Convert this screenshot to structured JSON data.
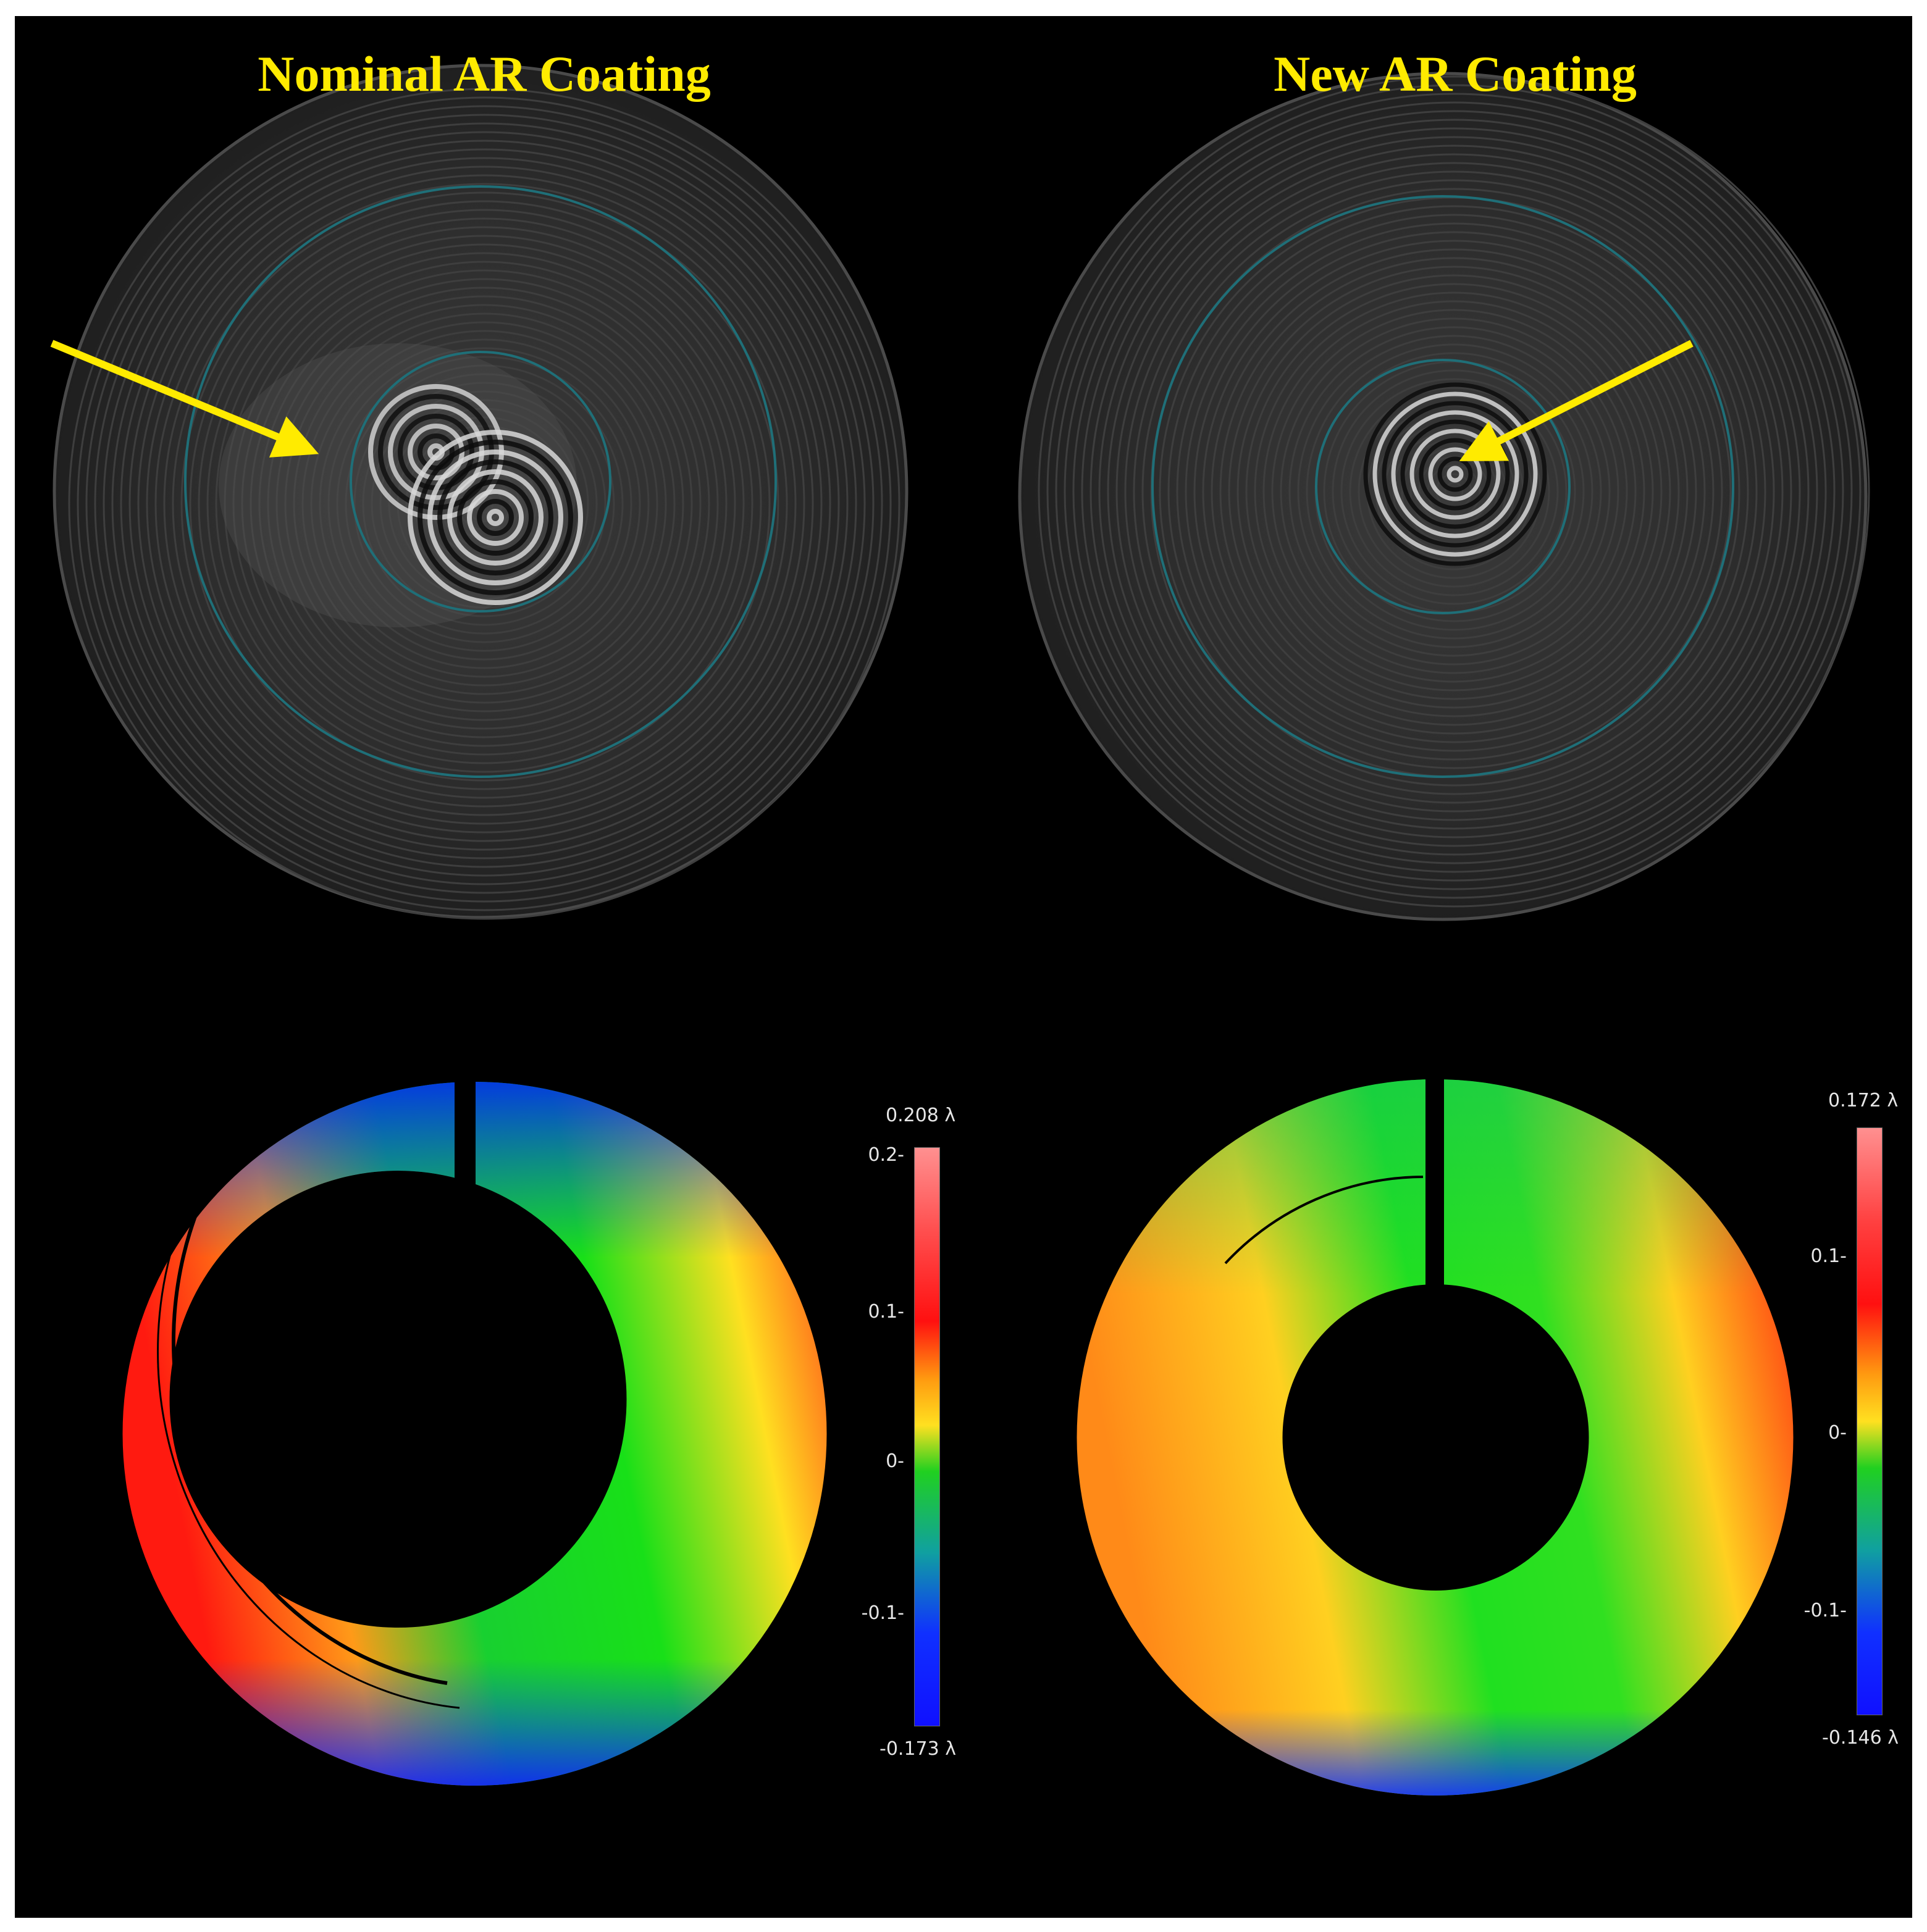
{
  "titles": {
    "left": "Nominal AR Coating",
    "right": "New AR Coating",
    "color": "#ffeb00"
  },
  "arrow_color": "#ffeb00",
  "colorbars": {
    "left": {
      "max_label": "0.208 λ",
      "min_label": "-0.173 λ",
      "ticks": [
        "0.2-",
        "0.1-",
        "0-",
        "-0.1-"
      ],
      "max": 0.208,
      "min": -0.173
    },
    "right": {
      "max_label": "0.172 λ",
      "min_label": "-0.146 λ",
      "ticks": [
        "0.1-",
        "0-",
        "-0.1-"
      ],
      "max": 0.172,
      "min": -0.146
    }
  }
}
